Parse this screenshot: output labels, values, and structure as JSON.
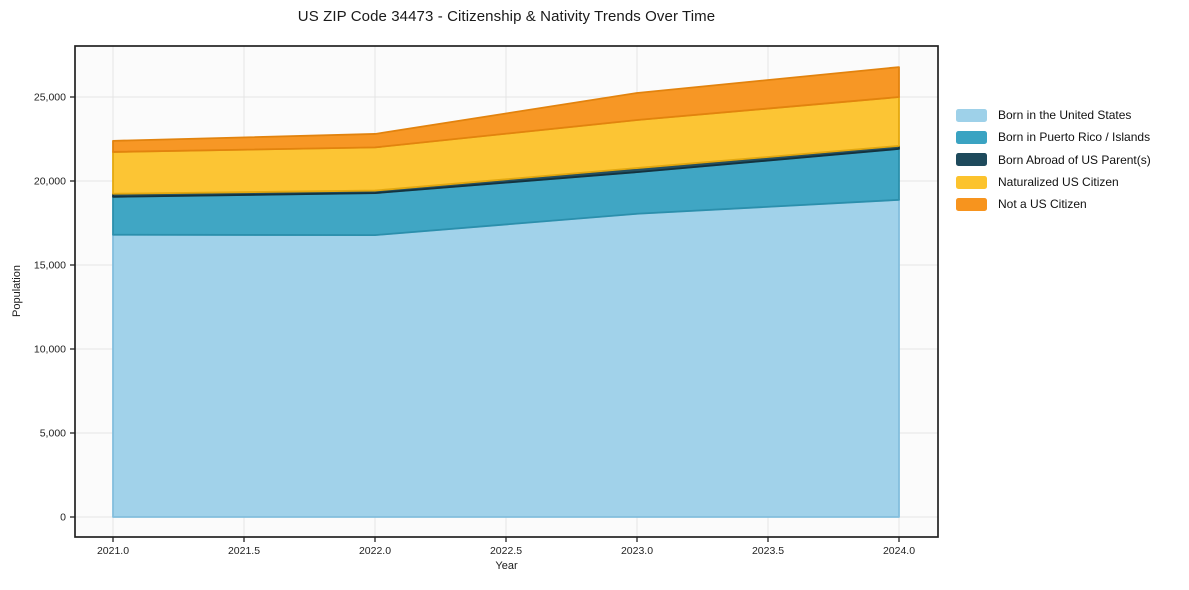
{
  "title": "US ZIP Code 34473 - Citizenship & Nativity Trends Over Time",
  "chart_data": {
    "type": "area",
    "stacked": true,
    "title": "US ZIP Code 34473 - Citizenship & Nativity Trends Over Time",
    "xlabel": "Year",
    "ylabel": "Population",
    "grid": true,
    "legend_position": "right-outside",
    "x": [
      2021,
      2022,
      2023,
      2024
    ],
    "series": [
      {
        "id": "born-us",
        "name": "Born in the United States",
        "color": "#9ED1E9",
        "edge_color": "#83BEDD",
        "values": [
          16800,
          16780,
          18050,
          18880
        ]
      },
      {
        "id": "born-pr",
        "name": "Born in Puerto Rico / Islands",
        "color": "#3AA3C2",
        "edge_color": "#2B8FAC",
        "values": [
          2260,
          2500,
          2480,
          3030
        ]
      },
      {
        "id": "born-abroad",
        "name": "Born Abroad of US Parent(s)",
        "color": "#1E4A5C",
        "edge_color": "#14323E",
        "values": [
          180,
          150,
          240,
          180
        ]
      },
      {
        "id": "naturalized",
        "name": "Naturalized US Citizen",
        "color": "#FCC32D",
        "edge_color": "#E3A80F",
        "values": [
          2490,
          2570,
          2860,
          2910
        ]
      },
      {
        "id": "not-citizen",
        "name": "Not a US Citizen",
        "color": "#F7941E",
        "edge_color": "#E2830E",
        "values": [
          660,
          800,
          1610,
          1780
        ]
      }
    ],
    "stacked_totals": [
      22390,
      22800,
      25240,
      26780
    ],
    "x_ticks": {
      "labels": [
        "2021.0",
        "2021.5",
        "2022.0",
        "2022.5",
        "2023.0",
        "2023.5",
        "2024.0"
      ],
      "values": [
        2021,
        2021.5,
        2022,
        2022.5,
        2023,
        2023.5,
        2024
      ]
    },
    "y_ticks": {
      "labels": [
        "0",
        "5,000",
        "10,000",
        "15,000",
        "20,000",
        "25,000"
      ],
      "values": [
        0,
        5000,
        10000,
        15000,
        20000,
        25000
      ]
    },
    "xlim": [
      2020.855,
      2024.15
    ],
    "ylim": [
      0,
      28050
    ],
    "plot_background": "#fbfbfb",
    "grid_color": "#e5e5e5",
    "axis_color": "#222222"
  }
}
